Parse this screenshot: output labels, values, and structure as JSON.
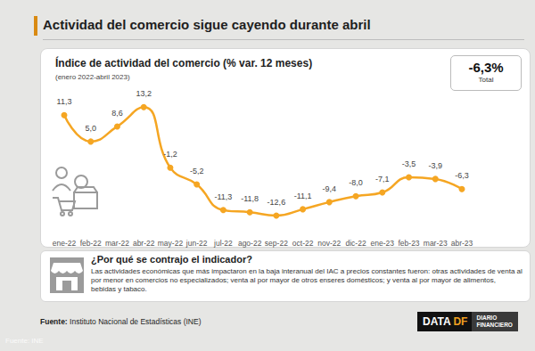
{
  "chart_data": {
    "type": "line",
    "title": "Actividad del comercio sigue cayendo durante abril",
    "subtitle": "Índice de actividad del comercio (% var. 12 meses)",
    "period": "(enero 2022-abril 2023)",
    "highlight": "-6,3%",
    "highlight_caption": "Total",
    "categories": [
      "ene-22",
      "feb-22",
      "mar-22",
      "abr-22",
      "may-22",
      "jun-22",
      "jul-22",
      "ago-22",
      "sep-22",
      "oct-22",
      "nov-22",
      "dic-22",
      "ene-23",
      "feb-23",
      "mar-23",
      "abr-23"
    ],
    "values": [
      11.3,
      5.0,
      8.6,
      13.2,
      -1.2,
      -5.2,
      -11.3,
      -11.8,
      -12.6,
      -11.1,
      -9.4,
      -8.0,
      -7.1,
      -3.5,
      -3.9,
      -6.3
    ],
    "value_labels": [
      "11,3",
      "5,0",
      "8,6",
      "13,2",
      "-1,2",
      "-5,2",
      "-11,3",
      "-11,8",
      "-12,6",
      "-11,1",
      "-9,4",
      "-8,0",
      "-7,1",
      "-3,5",
      "-3,9",
      "-6,3"
    ],
    "color": "#f5a623",
    "marker": "circle",
    "line_style": "smooth",
    "data_labels": true,
    "tick_labels": "x",
    "grid": false,
    "ylim": [
      -16,
      16
    ],
    "explanation_title": "¿Por qué se contrajo el indicador?",
    "explanation_text": "Las actividades económicas que más impactaron en la baja interanual del IAC a precios constantes fueron: otras actividades de venta al por menor en comercios no especializados; venta al por mayor de otros enseres domésticos; y venta al por mayor de alimentos, bebidas y tabaco.",
    "source": "Fuente: Instituto Nacional de Estadísticas (INE)",
    "brand": [
      "DATA",
      "DF",
      "DIARIO",
      "FINANCIERO"
    ],
    "image_credit": "Fuente: INE"
  }
}
